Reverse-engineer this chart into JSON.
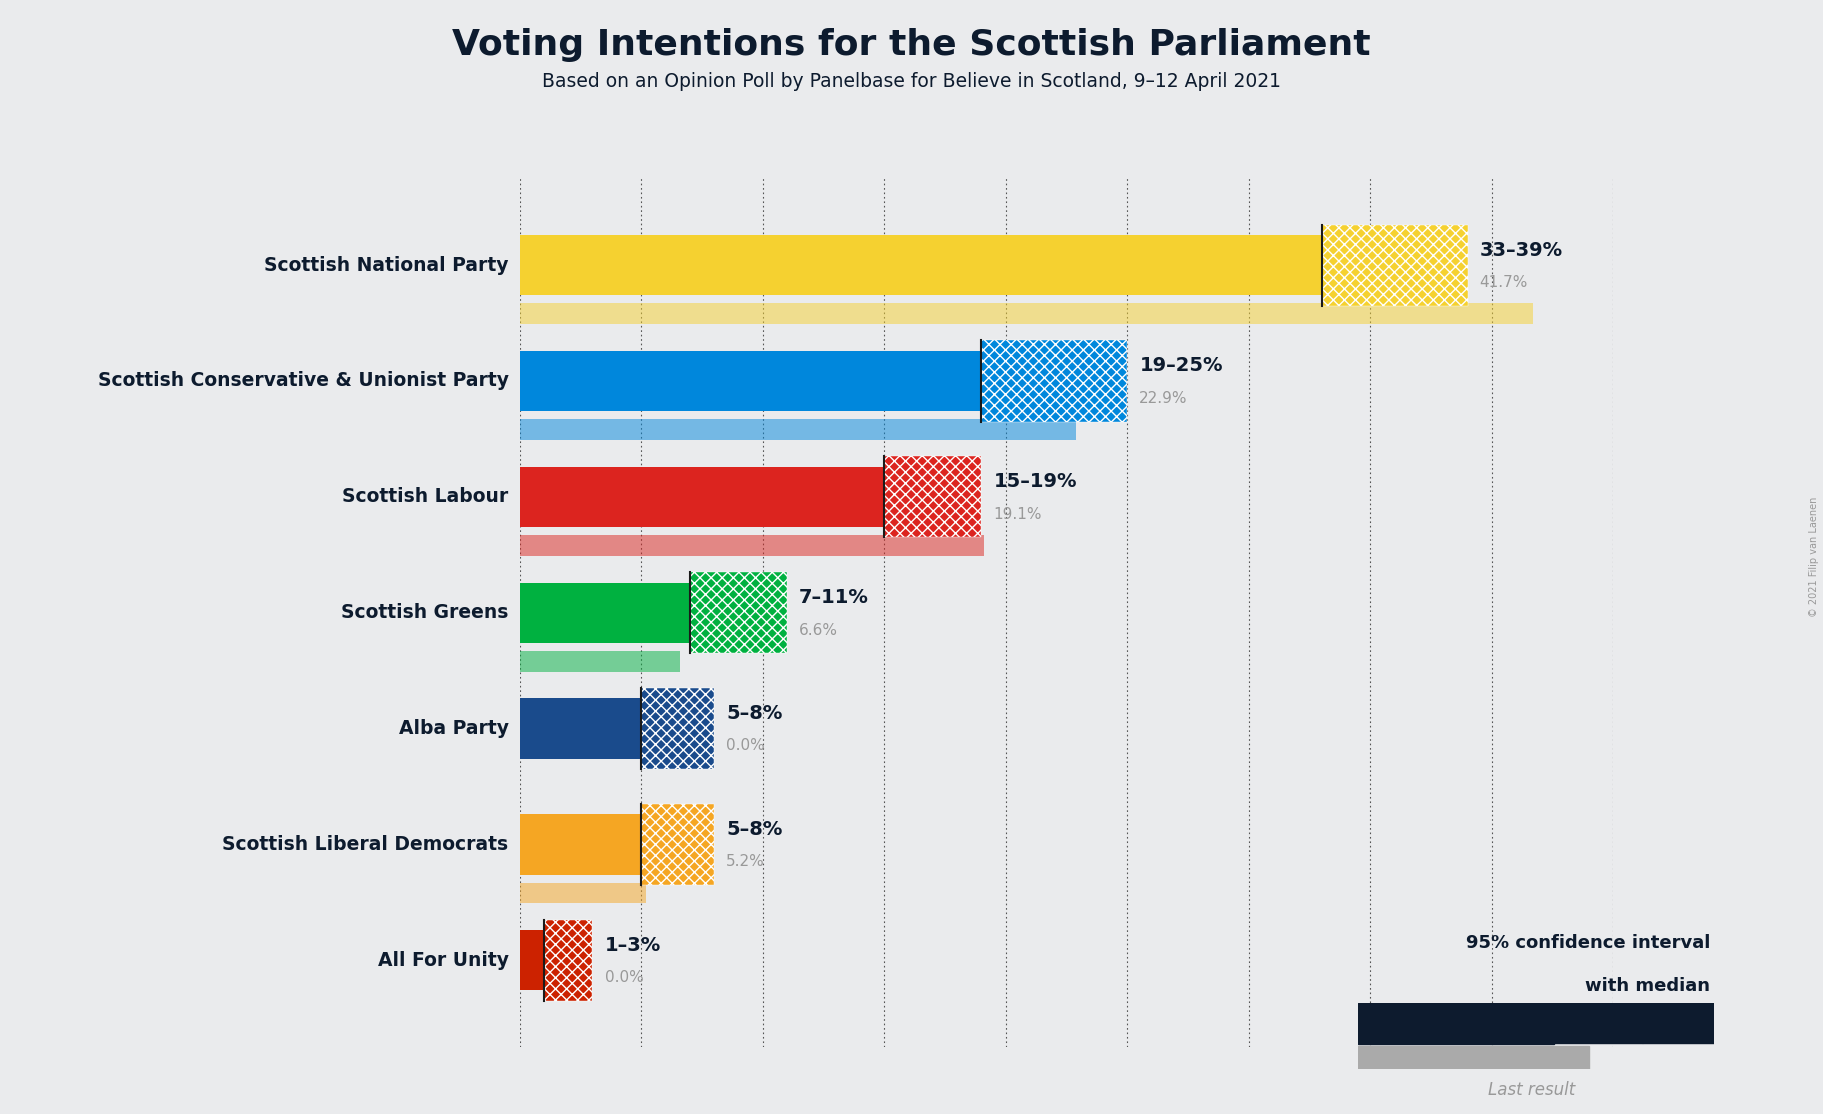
{
  "title": "Voting Intentions for the Scottish Parliament",
  "subtitle": "Based on an Opinion Poll by Panelbase for Believe in Scotland, 9–12 April 2021",
  "copyright": "© 2021 Filip van Laenen",
  "background_color": "#eaebed",
  "text_color": "#0d1b2e",
  "parties": [
    {
      "name": "Scottish National Party",
      "ci_low": 33,
      "ci_high": 39,
      "last_result": 41.7,
      "color": "#f5d130",
      "label": "33–39%",
      "last_label": "41.7%"
    },
    {
      "name": "Scottish Conservative & Unionist Party",
      "ci_low": 19,
      "ci_high": 25,
      "last_result": 22.9,
      "color": "#0087dc",
      "label": "19–25%",
      "last_label": "22.9%"
    },
    {
      "name": "Scottish Labour",
      "ci_low": 15,
      "ci_high": 19,
      "last_result": 19.1,
      "color": "#dc241f",
      "label": "15–19%",
      "last_label": "19.1%"
    },
    {
      "name": "Scottish Greens",
      "ci_low": 7,
      "ci_high": 11,
      "last_result": 6.6,
      "color": "#00b140",
      "label": "7–11%",
      "last_label": "6.6%"
    },
    {
      "name": "Alba Party",
      "ci_low": 5,
      "ci_high": 8,
      "last_result": 0.0,
      "color": "#1a4b8c",
      "label": "5–8%",
      "last_label": "0.0%"
    },
    {
      "name": "Scottish Liberal Democrats",
      "ci_low": 5,
      "ci_high": 8,
      "last_result": 5.2,
      "color": "#f5a623",
      "label": "5–8%",
      "last_label": "5.2%"
    },
    {
      "name": "All For Unity",
      "ci_low": 1,
      "ci_high": 3,
      "last_result": 0.0,
      "color": "#cc2200",
      "label": "1–3%",
      "last_label": "0.0%"
    }
  ],
  "xlim": [
    0,
    45
  ],
  "legend_text1": "95% confidence interval",
  "legend_text2": "with median",
  "legend_last": "Last result"
}
